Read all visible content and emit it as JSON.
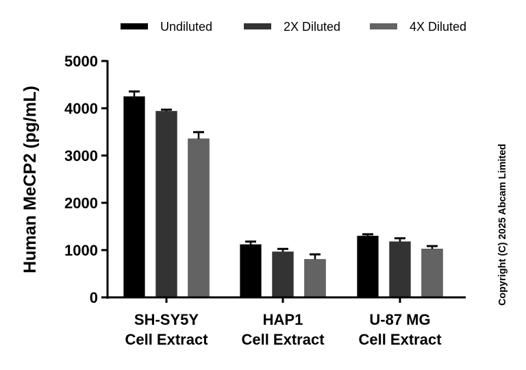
{
  "chart_data": {
    "type": "bar",
    "title": "",
    "xlabel": "",
    "ylabel": "Human MeCP2 (pg/mL)",
    "ylim": [
      0,
      5000
    ],
    "yticks": [
      0,
      1000,
      2000,
      3000,
      4000,
      5000
    ],
    "grid": false,
    "legend_position": "top",
    "categories": [
      [
        "SH-SY5Y",
        "Cell Extract"
      ],
      [
        "HAP1",
        "Cell Extract"
      ],
      [
        "U-87 MG",
        "Cell Extract"
      ]
    ],
    "series": [
      {
        "name": "Undiluted",
        "color": "#000000",
        "values": [
          4250,
          1120,
          1300
        ],
        "errors": [
          105,
          60,
          35
        ]
      },
      {
        "name": "2X Diluted",
        "color": "#333333",
        "values": [
          3940,
          965,
          1180
        ],
        "errors": [
          30,
          60,
          70
        ]
      },
      {
        "name": "4X Diluted",
        "color": "#636363",
        "values": [
          3355,
          805,
          1025
        ],
        "errors": [
          140,
          105,
          60
        ]
      }
    ],
    "annotation": "Copyright (C) 2025 Abcam Limited"
  }
}
